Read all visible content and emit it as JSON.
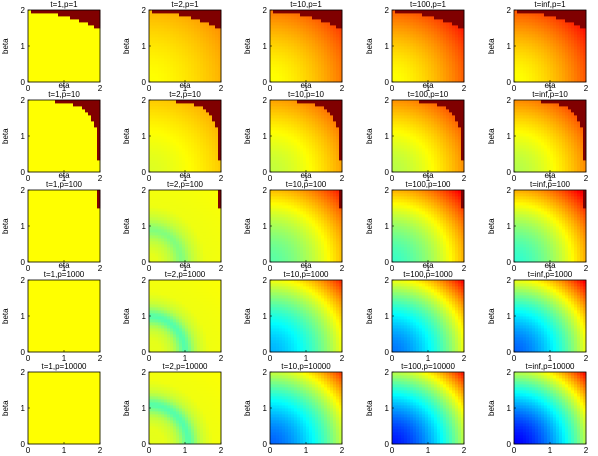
{
  "chart_data": {
    "type": "heatmap",
    "layout": "5x5 grid of colored-surface subplots",
    "xlabel": "eta",
    "ylabel": "beta",
    "xlim": [
      0,
      2
    ],
    "ylim": [
      0,
      2
    ],
    "xticks": [
      "0",
      "1",
      "2"
    ],
    "yticks": [
      "0",
      "1",
      "2"
    ],
    "colormap": "jet",
    "rows": [
      {
        "p": "1",
        "titles": [
          "t=1,p=1",
          "t=2,p=1",
          "t=10,p=1",
          "t=100,p=1",
          "t=inf,p=1"
        ]
      },
      {
        "p": "10",
        "titles": [
          "t=1,p=10",
          "t=2,p=10",
          "t=10,p=10",
          "t=100,p=10",
          "t=inf,p=10"
        ]
      },
      {
        "p": "100",
        "titles": [
          "t=1,p=100",
          "t=2,p=100",
          "t=10,p=100",
          "t=100,p=100",
          "t=inf,p=100"
        ]
      },
      {
        "p": "1000",
        "titles": [
          "t=1,p=1000",
          "t=2,p=1000",
          "t=10,p=1000",
          "t=100,p=1000",
          "t=inf,p=1000"
        ]
      },
      {
        "p": "10000",
        "titles": [
          "t=1,p=10000",
          "t=2,p=10000",
          "t=10,p=10000",
          "t=100,p=10000",
          "t=inf,p=10000"
        ]
      }
    ],
    "rows_with_xlabel": [
      0,
      1,
      2
    ]
  }
}
